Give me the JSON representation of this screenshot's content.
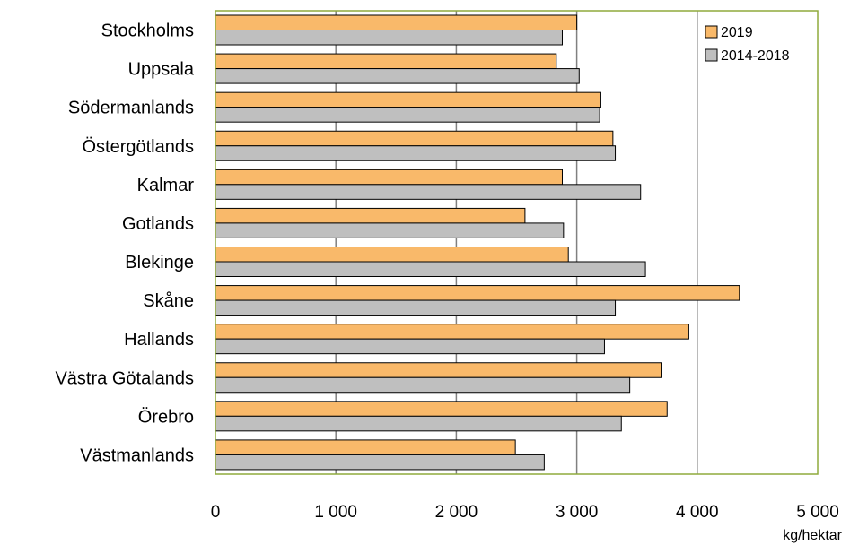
{
  "chart_data": {
    "type": "bar",
    "orientation": "horizontal",
    "categories": [
      "Stockholms",
      "Uppsala",
      "Södermanlands",
      "Östergötlands",
      "Kalmar",
      "Gotlands",
      "Blekinge",
      "Skåne",
      "Hallands",
      "Västra Götalands",
      "Örebro",
      "Västmanlands"
    ],
    "series": [
      {
        "name": "2019",
        "color": "#f9b96a",
        "values": [
          3000,
          2830,
          3200,
          3300,
          2880,
          2570,
          2930,
          4350,
          3930,
          3700,
          3750,
          2490
        ]
      },
      {
        "name": "2014-2018",
        "color": "#bfbfbf",
        "values": [
          2880,
          3020,
          3190,
          3320,
          3530,
          2890,
          3570,
          3320,
          3230,
          3440,
          3370,
          2730
        ]
      }
    ],
    "xlim": [
      0,
      5000
    ],
    "xticks": [
      0,
      1000,
      2000,
      3000,
      4000,
      5000
    ],
    "xtick_labels": [
      "0",
      "1 000",
      "2 000",
      "3 000",
      "4 000",
      "5 000"
    ],
    "xlabel": "kg/hektar",
    "ylabel": "",
    "title": "",
    "grid": "vertical",
    "legend_position": "top-right",
    "plot_border_color": "#8faa3c",
    "bar_edge_color": "#000000",
    "gridline_color": "#808080"
  }
}
